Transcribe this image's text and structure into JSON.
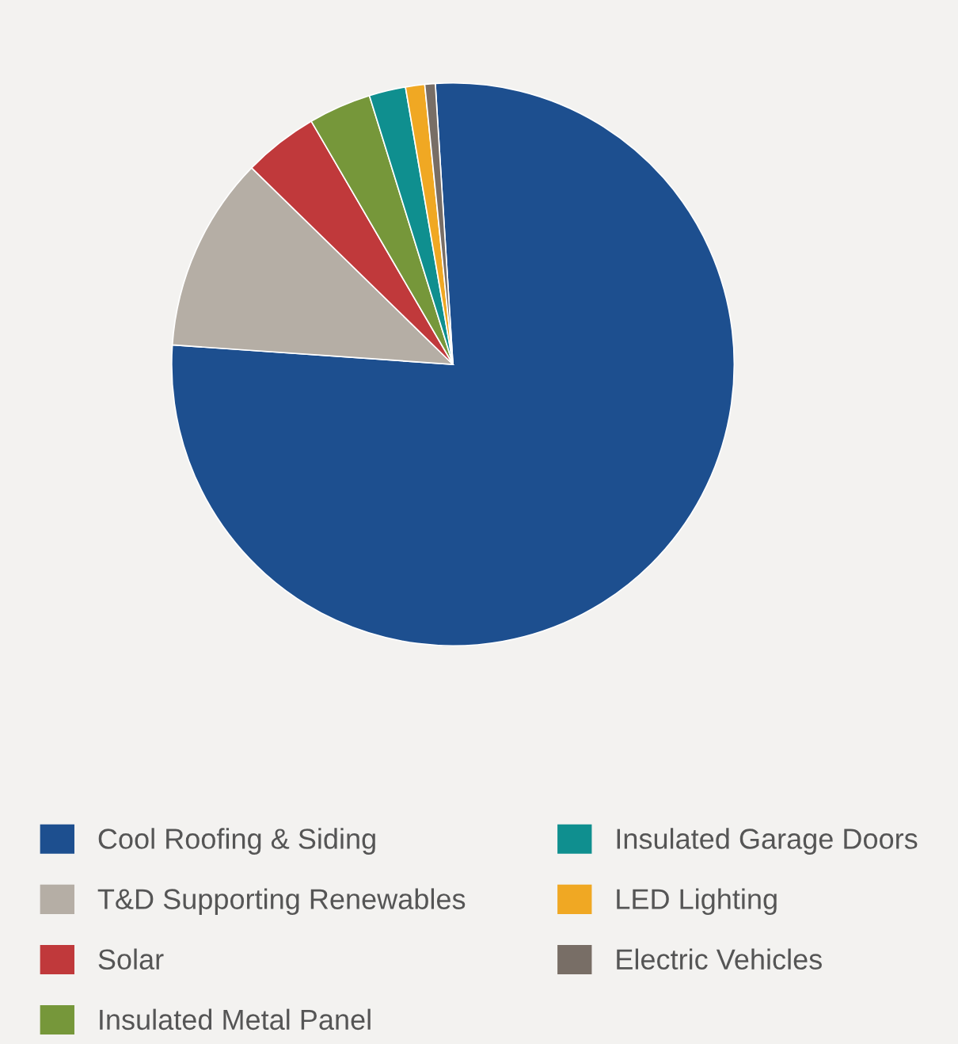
{
  "chart_data": {
    "type": "pie",
    "categories": [
      "Cool Roofing & Siding",
      "T&D Supporting Renewables",
      "Solar",
      "Insulated Metal Panel",
      "Insulated Garage Doors",
      "LED Lighting",
      "Electric Vehicles"
    ],
    "values": [
      77.1,
      11.2,
      4.3,
      3.6,
      2.1,
      1.1,
      0.6
    ],
    "colors": [
      "#1d4f8f",
      "#b5aea5",
      "#c0393b",
      "#76973a",
      "#0f8f8f",
      "#f0a823",
      "#786e66"
    ],
    "legend": "bottom"
  }
}
